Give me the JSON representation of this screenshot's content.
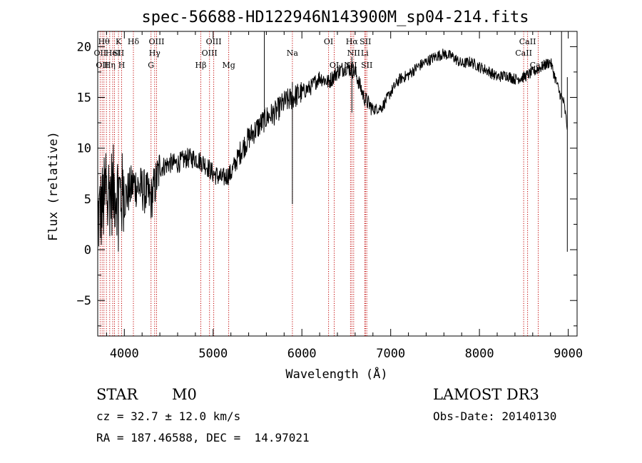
{
  "chart_data": {
    "type": "line",
    "title": "spec-56688-HD122946N143900M_sp04-214.fits",
    "xlabel": "Wavelength (Å)",
    "ylabel": "Flux (relative)",
    "xlim": [
      3700,
      9100
    ],
    "ylim": [
      -8.5,
      21.5
    ],
    "xticks": [
      4000,
      5000,
      6000,
      7000,
      8000,
      9000
    ],
    "yticks": [
      -5,
      0,
      5,
      10,
      15,
      20
    ],
    "xtick_labels": [
      "4000",
      "5000",
      "6000",
      "7000",
      "8000",
      "9000"
    ],
    "ytick_labels": [
      "−5",
      "0",
      "5",
      "10",
      "15",
      "20"
    ],
    "continuum": [
      [
        3700,
        3.0
      ],
      [
        3800,
        5.5
      ],
      [
        3900,
        6.0
      ],
      [
        4000,
        5.0
      ],
      [
        4100,
        6.5
      ],
      [
        4200,
        6.0
      ],
      [
        4300,
        5.0
      ],
      [
        4400,
        8.0
      ],
      [
        4500,
        8.5
      ],
      [
        4600,
        8.5
      ],
      [
        4700,
        9.0
      ],
      [
        4800,
        9.0
      ],
      [
        4900,
        8.5
      ],
      [
        5000,
        7.5
      ],
      [
        5100,
        7.0
      ],
      [
        5200,
        7.5
      ],
      [
        5300,
        9.5
      ],
      [
        5400,
        11.0
      ],
      [
        5500,
        12.0
      ],
      [
        5600,
        13.0
      ],
      [
        5700,
        13.5
      ],
      [
        5800,
        14.5
      ],
      [
        5900,
        15.0
      ],
      [
        6000,
        15.5
      ],
      [
        6100,
        16.0
      ],
      [
        6200,
        17.0
      ],
      [
        6300,
        16.5
      ],
      [
        6400,
        17.5
      ],
      [
        6500,
        18.0
      ],
      [
        6600,
        17.5
      ],
      [
        6700,
        15.0
      ],
      [
        6800,
        13.8
      ],
      [
        6900,
        14.0
      ],
      [
        7000,
        15.5
      ],
      [
        7100,
        16.8
      ],
      [
        7200,
        17.2
      ],
      [
        7300,
        18.0
      ],
      [
        7400,
        18.5
      ],
      [
        7500,
        19.0
      ],
      [
        7600,
        19.3
      ],
      [
        7700,
        19.0
      ],
      [
        7800,
        18.3
      ],
      [
        7900,
        18.5
      ],
      [
        8000,
        18.0
      ],
      [
        8100,
        17.6
      ],
      [
        8200,
        17.0
      ],
      [
        8300,
        17.2
      ],
      [
        8400,
        16.8
      ],
      [
        8500,
        17.0
      ],
      [
        8600,
        17.5
      ],
      [
        8700,
        18.0
      ],
      [
        8800,
        18.5
      ],
      [
        8850,
        17.0
      ],
      [
        8900,
        15.5
      ],
      [
        8950,
        14.5
      ],
      [
        8990,
        12.0
      ]
    ],
    "features": [
      {
        "x": 5577,
        "y0": 14.0,
        "y1": 23.0
      },
      {
        "x": 5893,
        "y0": 4.5,
        "y1": 16.5
      },
      {
        "x": 6563,
        "y0": 13.5,
        "y1": 19.0
      },
      {
        "x": 8925,
        "y0": 13.0,
        "y1": 23.0
      },
      {
        "x": 8990,
        "y0": -0.2,
        "y1": 17.0
      }
    ],
    "lines": [
      {
        "x": 3727,
        "labels": [
          {
            "text": "OII",
            "row": 2
          }
        ]
      },
      {
        "x": 3750,
        "labels": [
          {
            "text": "OII",
            "row": 3
          }
        ]
      },
      {
        "x": 3770,
        "labels": [
          {
            "text": "Hθ",
            "row": 1
          }
        ]
      },
      {
        "x": 3798,
        "labels": []
      },
      {
        "x": 3835,
        "labels": [
          {
            "text": "Hη",
            "row": 3
          }
        ]
      },
      {
        "x": 3869,
        "labels": [
          {
            "text": "HeI",
            "row": 2
          }
        ]
      },
      {
        "x": 3889,
        "labels": []
      },
      {
        "x": 3934,
        "labels": [
          {
            "text": "K",
            "row": 1
          },
          {
            "text": "SII",
            "row": 2
          }
        ]
      },
      {
        "x": 3969,
        "labels": [
          {
            "text": "H",
            "row": 3
          }
        ]
      },
      {
        "x": 4102,
        "labels": [
          {
            "text": "Hδ",
            "row": 1
          }
        ]
      },
      {
        "x": 4300,
        "labels": [
          {
            "text": "G",
            "row": 3
          }
        ]
      },
      {
        "x": 4341,
        "labels": [
          {
            "text": "Hγ",
            "row": 2
          }
        ]
      },
      {
        "x": 4363,
        "labels": [
          {
            "text": "OIII",
            "row": 1
          }
        ]
      },
      {
        "x": 4861,
        "labels": [
          {
            "text": "Hβ",
            "row": 3
          }
        ]
      },
      {
        "x": 4959,
        "labels": [
          {
            "text": "OIII",
            "row": 2
          }
        ]
      },
      {
        "x": 5007,
        "labels": [
          {
            "text": "OIII",
            "row": 1
          }
        ]
      },
      {
        "x": 5175,
        "labels": [
          {
            "text": "Mg",
            "row": 3
          }
        ]
      },
      {
        "x": 5893,
        "labels": [
          {
            "text": "Na",
            "row": 2
          }
        ]
      },
      {
        "x": 6300,
        "labels": [
          {
            "text": "OI",
            "row": 1
          }
        ]
      },
      {
        "x": 6364,
        "labels": [
          {
            "text": "OI",
            "row": 3
          }
        ]
      },
      {
        "x": 6548,
        "labels": [
          {
            "text": "NII",
            "row": 3
          }
        ]
      },
      {
        "x": 6563,
        "labels": [
          {
            "text": "Hα",
            "row": 1
          }
        ]
      },
      {
        "x": 6583,
        "labels": [
          {
            "text": "NII",
            "row": 2
          }
        ]
      },
      {
        "x": 6708,
        "labels": [
          {
            "text": "Li",
            "row": 2
          }
        ]
      },
      {
        "x": 6716,
        "labels": [
          {
            "text": "SII",
            "row": 1
          }
        ]
      },
      {
        "x": 6731,
        "labels": [
          {
            "text": "SII",
            "row": 3
          }
        ]
      },
      {
        "x": 8498,
        "labels": [
          {
            "text": "CaII",
            "row": 2
          }
        ]
      },
      {
        "x": 8542,
        "labels": [
          {
            "text": "CaII",
            "row": 1
          }
        ]
      },
      {
        "x": 8662,
        "labels": [
          {
            "text": "CaII",
            "row": 3
          }
        ]
      }
    ],
    "line_color": "#c00000",
    "grid": false
  },
  "info": {
    "object_class": "STAR",
    "subclass": "M0",
    "survey": "LAMOST DR3",
    "redshift": "cz = 32.7 ± 12.0 km/s",
    "obs_date": "Obs-Date: 20140130",
    "coords": "RA = 187.46588, DEC =  14.97021"
  }
}
